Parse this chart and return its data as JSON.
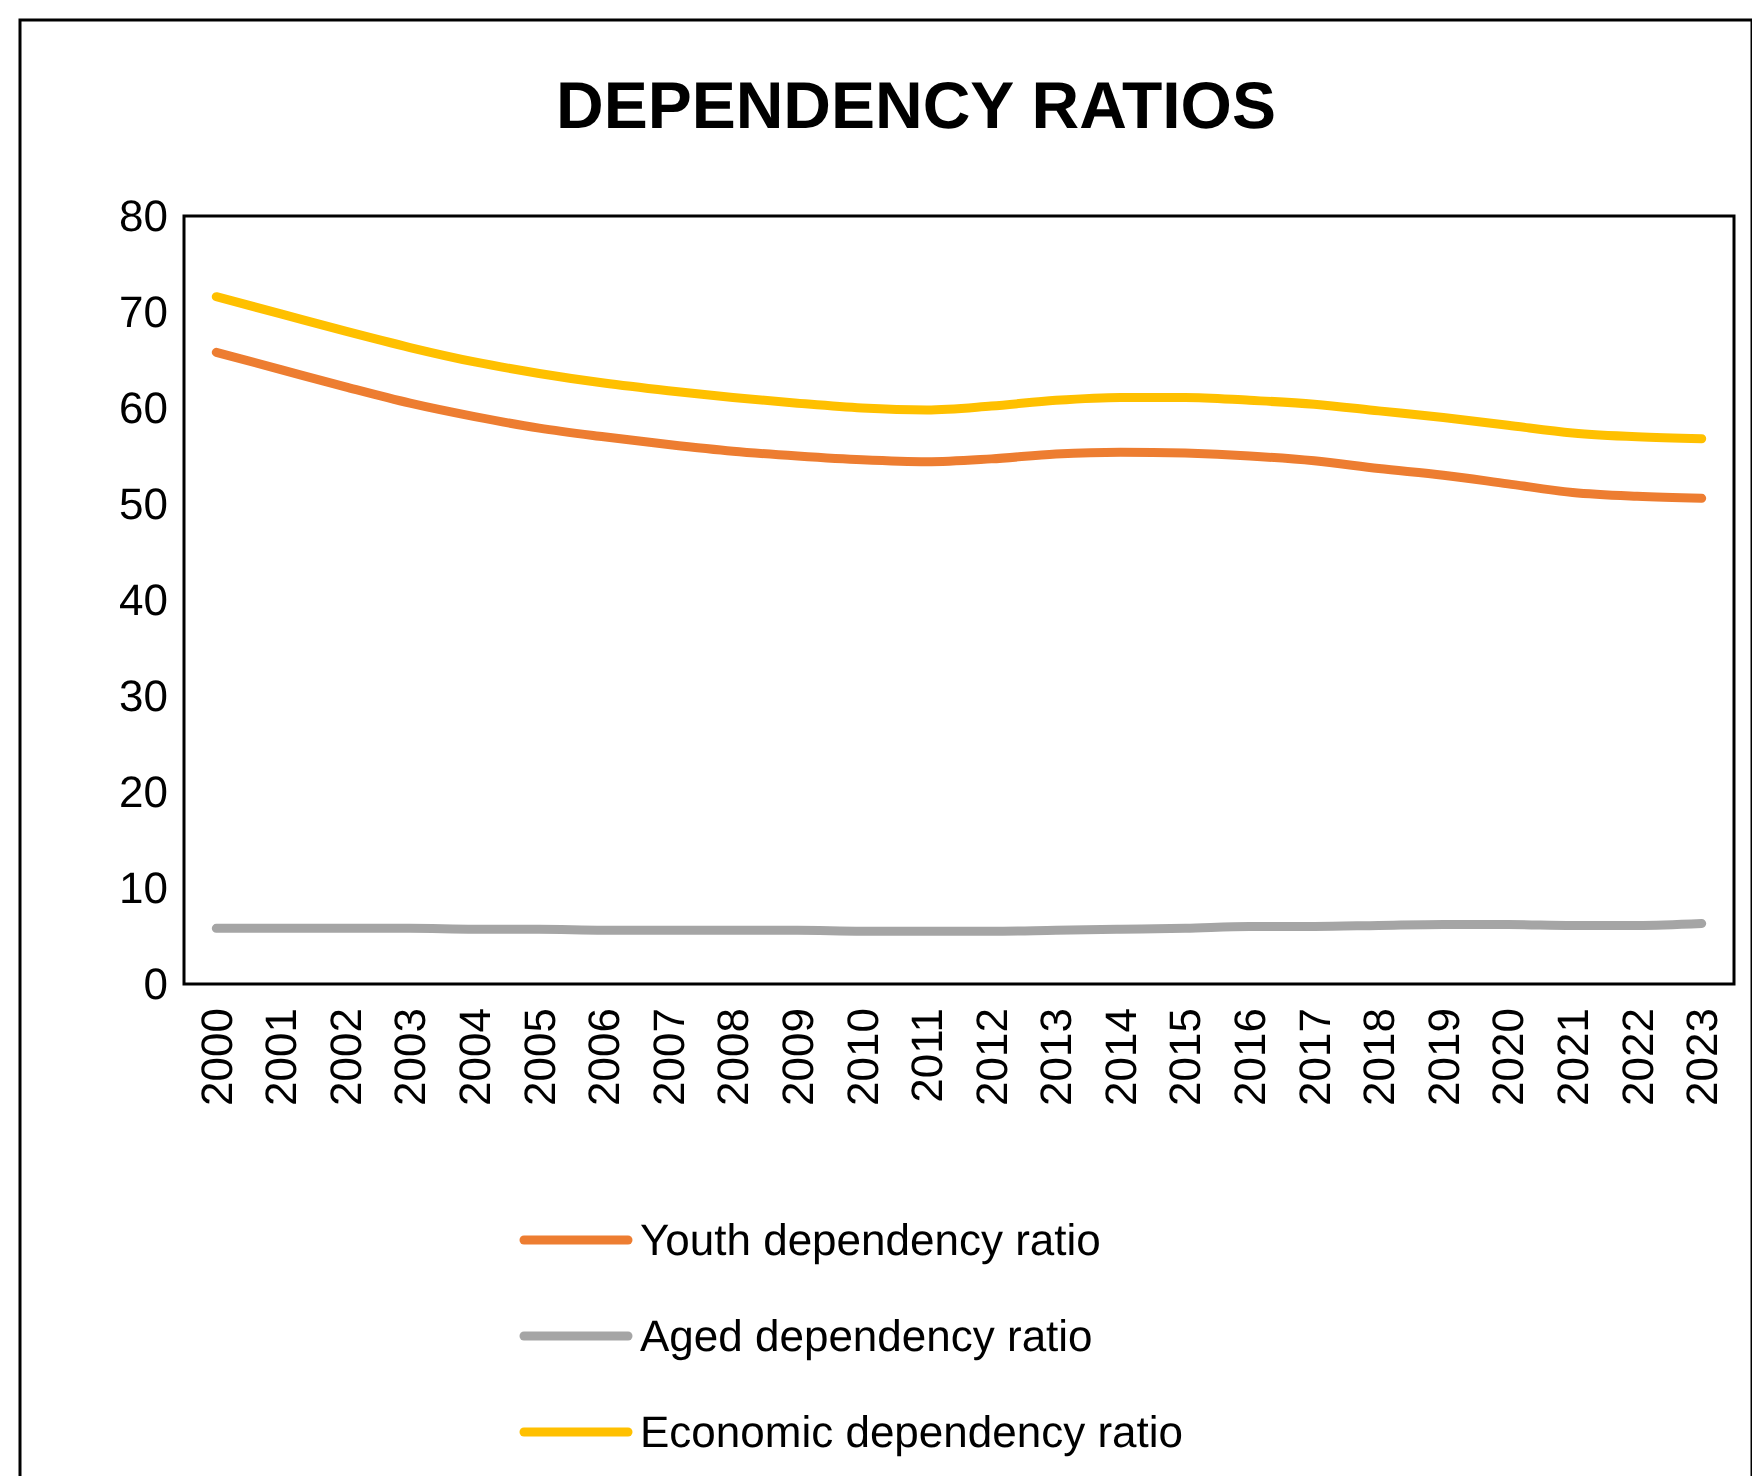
{
  "chart_data": {
    "type": "line",
    "title": "DEPENDENCY RATIOS",
    "categories": [
      "2000",
      "2001",
      "2002",
      "2003",
      "2004",
      "2005",
      "2006",
      "2007",
      "2008",
      "2009",
      "2010",
      "2011",
      "2012",
      "2013",
      "2014",
      "2015",
      "2016",
      "2017",
      "2018",
      "2019",
      "2020",
      "2021",
      "2022",
      "2023"
    ],
    "series": [
      {
        "name": "Youth dependency ratio",
        "color": "#ed7d31",
        "values": [
          65.8,
          64,
          62.2,
          60.5,
          59.1,
          57.9,
          57,
          56.2,
          55.5,
          55,
          54.6,
          54.4,
          54.7,
          55.2,
          55.4,
          55.3,
          55,
          54.5,
          53.7,
          53,
          52.1,
          51.2,
          50.8,
          50.6
        ]
      },
      {
        "name": "Aged dependency ratio",
        "color": "#a5a5a5",
        "values": [
          5.8,
          5.8,
          5.8,
          5.8,
          5.7,
          5.7,
          5.6,
          5.6,
          5.6,
          5.6,
          5.5,
          5.5,
          5.5,
          5.6,
          5.7,
          5.8,
          6,
          6,
          6.1,
          6.2,
          6.2,
          6.1,
          6.1,
          6.3
        ]
      },
      {
        "name": "Economic dependency ratio",
        "color": "#ffc000",
        "values": [
          71.6,
          69.8,
          68,
          66.3,
          64.8,
          63.6,
          62.6,
          61.8,
          61.1,
          60.5,
          60,
          59.8,
          60.2,
          60.8,
          61.1,
          61.1,
          60.8,
          60.4,
          59.7,
          59,
          58.2,
          57.4,
          57,
          56.8
        ]
      }
    ],
    "ylim": [
      0,
      80
    ],
    "yticks": [
      0,
      10,
      20,
      30,
      40,
      50,
      60,
      70,
      80
    ],
    "grid": false,
    "legend": "bottom",
    "marker": "none",
    "line_style": "solid"
  }
}
